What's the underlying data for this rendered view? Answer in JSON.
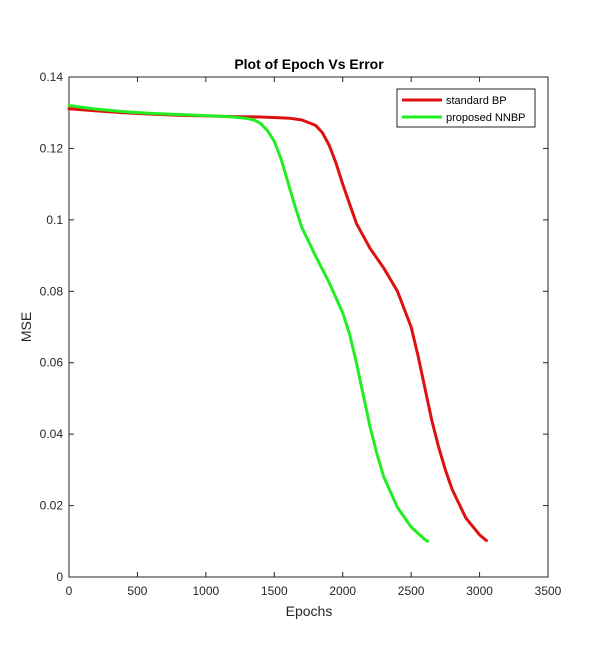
{
  "chart_data": {
    "type": "line",
    "title": "Plot of Epoch Vs Error",
    "xlabel": "Epochs",
    "ylabel": "MSE",
    "xlim": [
      0,
      3500
    ],
    "ylim": [
      0,
      0.14
    ],
    "xticks": [
      0,
      500,
      1000,
      1500,
      2000,
      2500,
      3000,
      3500
    ],
    "yticks": [
      0,
      0.02,
      0.04,
      0.06,
      0.08,
      0.1,
      0.12,
      0.14
    ],
    "xtick_labels": [
      "0",
      "500",
      "1000",
      "1500",
      "2000",
      "2500",
      "3000",
      "3500"
    ],
    "ytick_labels": [
      "0",
      "0.02",
      "0.04",
      "0.06",
      "0.08",
      "0.1",
      "0.12",
      "0.14"
    ],
    "grid": false,
    "legend_position": "top-right",
    "series": [
      {
        "name": "standard BP",
        "color": "#dd1111",
        "x": [
          0,
          200,
          400,
          600,
          800,
          1000,
          1200,
          1400,
          1600,
          1700,
          1800,
          1850,
          1900,
          1950,
          2000,
          2050,
          2100,
          2200,
          2300,
          2400,
          2500,
          2550,
          2600,
          2650,
          2700,
          2750,
          2800,
          2900,
          3000,
          3050
        ],
        "y": [
          0.1311,
          0.1305,
          0.13,
          0.1296,
          0.1293,
          0.1291,
          0.1289,
          0.1288,
          0.1285,
          0.128,
          0.1265,
          0.1245,
          0.121,
          0.116,
          0.11,
          0.1045,
          0.099,
          0.092,
          0.0865,
          0.08,
          0.07,
          0.062,
          0.053,
          0.044,
          0.0365,
          0.03,
          0.0245,
          0.0165,
          0.0118,
          0.0102
        ]
      },
      {
        "name": "proposed NNBP",
        "color": "#22ee22",
        "x": [
          0,
          200,
          400,
          600,
          800,
          1000,
          1100,
          1200,
          1300,
          1350,
          1400,
          1450,
          1500,
          1550,
          1600,
          1650,
          1700,
          1800,
          1900,
          2000,
          2050,
          2100,
          2150,
          2200,
          2250,
          2300,
          2400,
          2500,
          2600,
          2620
        ],
        "y": [
          0.132,
          0.131,
          0.1303,
          0.1298,
          0.1295,
          0.1292,
          0.129,
          0.1288,
          0.1284,
          0.128,
          0.127,
          0.125,
          0.122,
          0.117,
          0.1105,
          0.104,
          0.098,
          0.09,
          0.0825,
          0.074,
          0.068,
          0.06,
          0.051,
          0.042,
          0.0345,
          0.028,
          0.0195,
          0.014,
          0.0105,
          0.01
        ]
      }
    ]
  }
}
